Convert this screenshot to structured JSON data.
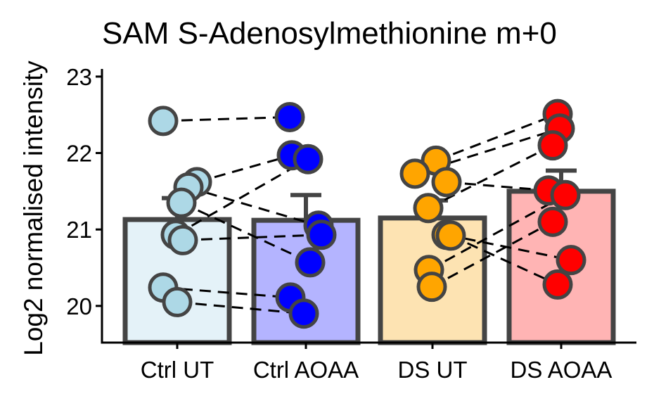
{
  "chart_data": {
    "type": "bar",
    "title": "SAM S-Adenosylmethionine m+0",
    "xlabel": "",
    "ylabel": "Log2 normalised intensity",
    "ylim": [
      19.52,
      23.1
    ],
    "yticks": [
      20,
      21,
      22,
      23
    ],
    "grid": false,
    "categories": [
      "Ctrl UT",
      "Ctrl AOAA",
      "DS UT",
      "DS AOAA"
    ],
    "values": [
      21.13,
      21.12,
      21.15,
      21.5
    ],
    "errors": [
      0.28,
      0.33,
      0.23,
      0.27
    ],
    "colors": {
      "bar_fill": [
        "#e4f2f8",
        "#b4b4ff",
        "#fde3b2",
        "#ffb4b4"
      ],
      "point_fill": [
        "#add8e6",
        "#0000ff",
        "#ffa500",
        "#ff0000"
      ],
      "outline": "#444444"
    },
    "points": [
      [
        22.42,
        21.62,
        21.55,
        21.35,
        20.93,
        20.86,
        20.24,
        20.05
      ],
      [
        22.47,
        21.97,
        21.92,
        21.05,
        20.93,
        20.57,
        20.11,
        19.9
      ],
      [
        21.9,
        21.73,
        21.62,
        21.28,
        20.93,
        20.92,
        20.47,
        20.25
      ],
      [
        22.51,
        22.32,
        22.1,
        21.51,
        21.45,
        21.1,
        20.6,
        20.28
      ]
    ],
    "pairs": [
      [
        [
          0,
          0
        ],
        [
          1,
          0
        ]
      ],
      [
        [
          0,
          1
        ],
        [
          1,
          1
        ]
      ],
      [
        [
          0,
          2
        ],
        [
          1,
          3
        ]
      ],
      [
        [
          0,
          3
        ],
        [
          1,
          5
        ]
      ],
      [
        [
          0,
          4
        ],
        [
          1,
          2
        ]
      ],
      [
        [
          0,
          5
        ],
        [
          1,
          4
        ]
      ],
      [
        [
          0,
          6
        ],
        [
          1,
          6
        ]
      ],
      [
        [
          0,
          7
        ],
        [
          1,
          7
        ]
      ],
      [
        [
          2,
          0
        ],
        [
          3,
          0
        ]
      ],
      [
        [
          2,
          1
        ],
        [
          3,
          1
        ]
      ],
      [
        [
          2,
          2
        ],
        [
          3,
          3
        ]
      ],
      [
        [
          2,
          3
        ],
        [
          3,
          2
        ]
      ],
      [
        [
          2,
          4
        ],
        [
          3,
          6
        ]
      ],
      [
        [
          2,
          5
        ],
        [
          3,
          7
        ]
      ],
      [
        [
          2,
          6
        ],
        [
          3,
          4
        ]
      ],
      [
        [
          2,
          7
        ],
        [
          3,
          5
        ]
      ]
    ]
  }
}
